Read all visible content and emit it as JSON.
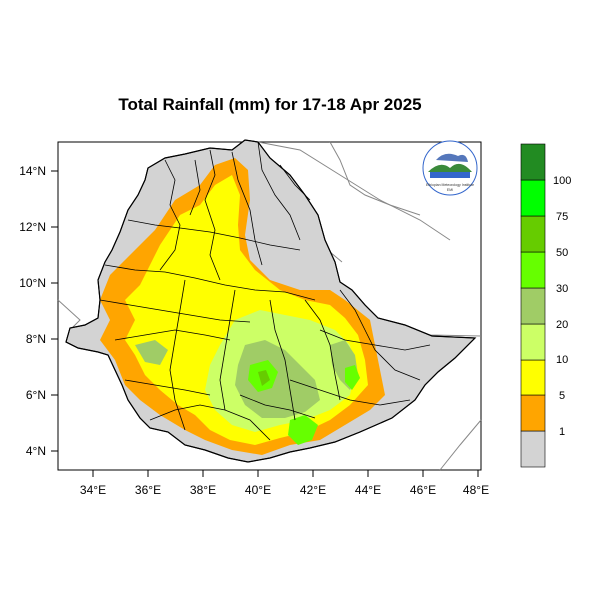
{
  "title": "Total Rainfall (mm) for 17-18 Apr 2025",
  "axes": {
    "lon_ticks": [
      "34°E",
      "36°E",
      "38°E",
      "40°E",
      "42°E",
      "44°E",
      "46°E",
      "48°E"
    ],
    "lat_ticks": [
      "14°N",
      "12°N",
      "10°N",
      "8°N",
      "6°N",
      "4°N"
    ],
    "lon_range": [
      32.8,
      48.2
    ],
    "lat_range": [
      3.3,
      15.0
    ]
  },
  "legend": {
    "labels": [
      "1",
      "5",
      "10",
      "20",
      "30",
      "50",
      "75",
      "100"
    ],
    "colors": [
      "#d3d3d3",
      "#ffa500",
      "#ffff00",
      "#ccff66",
      "#a0cc66",
      "#66ff00",
      "#66cc00",
      "#00ff00",
      "#228b22"
    ]
  },
  "logo": {
    "text": "Ethiopian Meteorology Institute",
    "sub": "EMI"
  },
  "colors": {
    "land_outside": "#ffffff",
    "ethiopia_base": "#d3d3d3",
    "boundaries": "#000000",
    "neighbors": "#888888"
  }
}
